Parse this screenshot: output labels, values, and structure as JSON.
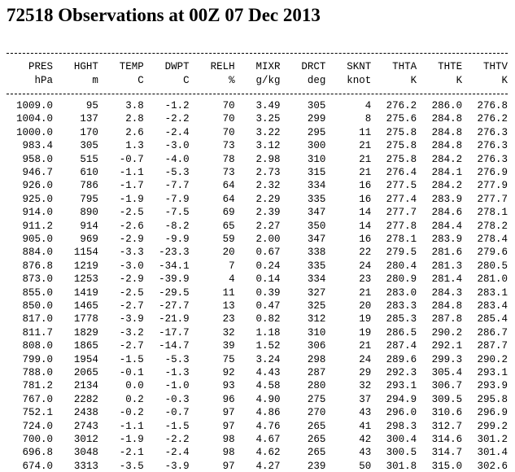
{
  "title": "72518 Observations at 00Z 07 Dec 2013",
  "columns": [
    {
      "name": "PRES",
      "unit": "hPa"
    },
    {
      "name": "HGHT",
      "unit": "m"
    },
    {
      "name": "TEMP",
      "unit": "C"
    },
    {
      "name": "DWPT",
      "unit": "C"
    },
    {
      "name": "RELH",
      "unit": "%"
    },
    {
      "name": "MIXR",
      "unit": "g/kg"
    },
    {
      "name": "DRCT",
      "unit": "deg"
    },
    {
      "name": "SKNT",
      "unit": "knot"
    },
    {
      "name": "THTA",
      "unit": "K"
    },
    {
      "name": "THTE",
      "unit": "K"
    },
    {
      "name": "THTV",
      "unit": "K"
    }
  ],
  "rows": [
    [
      "1009.0",
      "95",
      "3.8",
      "-1.2",
      "70",
      "3.49",
      "305",
      "4",
      "276.2",
      "286.0",
      "276.8"
    ],
    [
      "1004.0",
      "137",
      "2.8",
      "-2.2",
      "70",
      "3.25",
      "299",
      "8",
      "275.6",
      "284.8",
      "276.2"
    ],
    [
      "1000.0",
      "170",
      "2.6",
      "-2.4",
      "70",
      "3.22",
      "295",
      "11",
      "275.8",
      "284.8",
      "276.3"
    ],
    [
      "983.4",
      "305",
      "1.3",
      "-3.0",
      "73",
      "3.12",
      "300",
      "21",
      "275.8",
      "284.8",
      "276.3"
    ],
    [
      "958.0",
      "515",
      "-0.7",
      "-4.0",
      "78",
      "2.98",
      "310",
      "21",
      "275.8",
      "284.2",
      "276.3"
    ],
    [
      "946.7",
      "610",
      "-1.1",
      "-5.3",
      "73",
      "2.73",
      "315",
      "21",
      "276.4",
      "284.1",
      "276.9"
    ],
    [
      "926.0",
      "786",
      "-1.7",
      "-7.7",
      "64",
      "2.32",
      "334",
      "16",
      "277.5",
      "284.2",
      "277.9"
    ],
    [
      "925.0",
      "795",
      "-1.9",
      "-7.9",
      "64",
      "2.29",
      "335",
      "16",
      "277.4",
      "283.9",
      "277.7"
    ],
    [
      "914.0",
      "890",
      "-2.5",
      "-7.5",
      "69",
      "2.39",
      "347",
      "14",
      "277.7",
      "284.6",
      "278.1"
    ],
    [
      "911.2",
      "914",
      "-2.6",
      "-8.2",
      "65",
      "2.27",
      "350",
      "14",
      "277.8",
      "284.4",
      "278.2"
    ],
    [
      "905.0",
      "969",
      "-2.9",
      "-9.9",
      "59",
      "2.00",
      "347",
      "16",
      "278.1",
      "283.9",
      "278.4"
    ],
    [
      "884.0",
      "1154",
      "-3.3",
      "-23.3",
      "20",
      "0.67",
      "338",
      "22",
      "279.5",
      "281.6",
      "279.6"
    ],
    [
      "876.8",
      "1219",
      "-3.0",
      "-34.1",
      "7",
      "0.24",
      "335",
      "24",
      "280.4",
      "281.3",
      "280.5"
    ],
    [
      "873.0",
      "1253",
      "-2.9",
      "-39.9",
      "4",
      "0.14",
      "334",
      "23",
      "280.9",
      "281.4",
      "281.0"
    ],
    [
      "855.0",
      "1419",
      "-2.5",
      "-29.5",
      "11",
      "0.39",
      "327",
      "21",
      "283.0",
      "284.3",
      "283.1"
    ],
    [
      "850.0",
      "1465",
      "-2.7",
      "-27.7",
      "13",
      "0.47",
      "325",
      "20",
      "283.3",
      "284.8",
      "283.4"
    ],
    [
      "817.0",
      "1778",
      "-3.9",
      "-21.9",
      "23",
      "0.82",
      "312",
      "19",
      "285.3",
      "287.8",
      "285.4"
    ],
    [
      "811.7",
      "1829",
      "-3.2",
      "-17.7",
      "32",
      "1.18",
      "310",
      "19",
      "286.5",
      "290.2",
      "286.7"
    ],
    [
      "808.0",
      "1865",
      "-2.7",
      "-14.7",
      "39",
      "1.52",
      "306",
      "21",
      "287.4",
      "292.1",
      "287.7"
    ],
    [
      "799.0",
      "1954",
      "-1.5",
      "-5.3",
      "75",
      "3.24",
      "298",
      "24",
      "289.6",
      "299.3",
      "290.2"
    ],
    [
      "788.0",
      "2065",
      "-0.1",
      "-1.3",
      "92",
      "4.43",
      "287",
      "29",
      "292.3",
      "305.4",
      "293.1"
    ],
    [
      "781.2",
      "2134",
      "0.0",
      "-1.0",
      "93",
      "4.58",
      "280",
      "32",
      "293.1",
      "306.7",
      "293.9"
    ],
    [
      "767.0",
      "2282",
      "0.2",
      "-0.3",
      "96",
      "4.90",
      "275",
      "37",
      "294.9",
      "309.5",
      "295.8"
    ],
    [
      "752.1",
      "2438",
      "-0.2",
      "-0.7",
      "97",
      "4.86",
      "270",
      "43",
      "296.0",
      "310.6",
      "296.9"
    ],
    [
      "724.0",
      "2743",
      "-1.1",
      "-1.5",
      "97",
      "4.76",
      "265",
      "41",
      "298.3",
      "312.7",
      "299.2"
    ],
    [
      "700.0",
      "3012",
      "-1.9",
      "-2.2",
      "98",
      "4.67",
      "265",
      "42",
      "300.4",
      "314.6",
      "301.2"
    ],
    [
      "696.8",
      "3048",
      "-2.1",
      "-2.4",
      "98",
      "4.62",
      "265",
      "43",
      "300.5",
      "314.7",
      "301.4"
    ],
    [
      "674.0",
      "3313",
      "-3.5",
      "-3.9",
      "97",
      "4.27",
      "239",
      "50",
      "301.8",
      "315.0",
      "302.6"
    ]
  ]
}
